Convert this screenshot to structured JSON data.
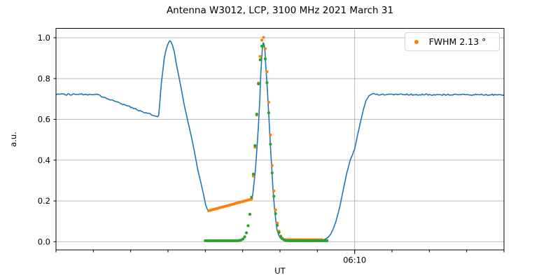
{
  "chart_data": {
    "type": "line",
    "title": "Antenna W3012, LCP, 3100 MHz 2021 March 31",
    "xlabel": "UT",
    "ylabel": "a.u.",
    "x_axis": {
      "unit": "minutes since 00:00 UT",
      "range": [
        330,
        390
      ],
      "minor_tick_step": 5,
      "major_ticks": [
        {
          "t": 370,
          "label": "06:10"
        }
      ],
      "vertical_gridlines": [
        370
      ]
    },
    "y_axis": {
      "range": [
        -0.04,
        1.046
      ],
      "tick_values": [
        0.0,
        0.2,
        0.4,
        0.6,
        0.8,
        1.0
      ],
      "tick_labels": [
        "0.0",
        "0.2",
        "0.4",
        "0.6",
        "0.8",
        "1.0"
      ],
      "grid": true
    },
    "legend": {
      "label": "FWHM 2.13 °",
      "marker_color": "#ff7f0e",
      "position": "upper-right"
    },
    "series": [
      {
        "id": "raw-signal",
        "type": "line",
        "color": "#1f77b4",
        "line_width": 1.6,
        "noise_amp": 0.007,
        "points": [
          [
            330.0,
            0.722
          ],
          [
            335.4,
            0.722
          ],
          [
            336.6,
            0.707
          ],
          [
            338.0,
            0.688
          ],
          [
            339.4,
            0.668
          ],
          [
            340.8,
            0.648
          ],
          [
            342.2,
            0.63
          ],
          [
            343.1,
            0.618
          ],
          [
            343.6,
            0.613
          ],
          [
            343.75,
            0.62
          ],
          [
            343.9,
            0.68
          ],
          [
            344.0,
            0.73
          ],
          [
            344.15,
            0.79
          ],
          [
            344.35,
            0.85
          ],
          [
            344.5,
            0.9
          ],
          [
            344.7,
            0.935
          ],
          [
            344.9,
            0.96
          ],
          [
            345.1,
            0.978
          ],
          [
            345.25,
            0.985
          ],
          [
            345.4,
            0.98
          ],
          [
            345.6,
            0.963
          ],
          [
            345.85,
            0.93
          ],
          [
            346.1,
            0.875
          ],
          [
            346.4,
            0.82
          ],
          [
            346.8,
            0.745
          ],
          [
            347.15,
            0.675
          ],
          [
            347.6,
            0.6
          ],
          [
            348.1,
            0.52
          ],
          [
            348.55,
            0.44
          ],
          [
            349.0,
            0.35
          ],
          [
            349.4,
            0.29
          ],
          [
            349.8,
            0.225
          ],
          [
            350.05,
            0.18
          ],
          [
            350.25,
            0.16
          ],
          [
            350.45,
            0.152
          ],
          [
            351.1,
            0.158
          ],
          [
            352.0,
            0.167
          ],
          [
            353.0,
            0.176
          ],
          [
            353.9,
            0.185
          ],
          [
            354.85,
            0.194
          ],
          [
            355.5,
            0.2
          ],
          [
            356.0,
            0.206
          ],
          [
            356.15,
            0.21
          ],
          [
            356.35,
            0.23
          ],
          [
            356.5,
            0.28
          ],
          [
            356.7,
            0.35
          ],
          [
            356.9,
            0.45
          ],
          [
            357.1,
            0.56
          ],
          [
            357.3,
            0.7
          ],
          [
            357.4,
            0.8
          ],
          [
            357.55,
            0.9
          ],
          [
            357.65,
            0.955
          ],
          [
            357.75,
            0.975
          ],
          [
            357.85,
            0.97
          ],
          [
            358.0,
            0.93
          ],
          [
            358.1,
            0.86
          ],
          [
            358.3,
            0.75
          ],
          [
            358.5,
            0.62
          ],
          [
            358.7,
            0.48
          ],
          [
            358.9,
            0.36
          ],
          [
            359.05,
            0.26
          ],
          [
            359.25,
            0.17
          ],
          [
            359.45,
            0.1
          ],
          [
            359.6,
            0.06
          ],
          [
            359.8,
            0.035
          ],
          [
            360.0,
            0.02
          ],
          [
            360.3,
            0.012
          ],
          [
            365.8,
            0.008
          ],
          [
            366.0,
            0.012
          ],
          [
            366.4,
            0.02
          ],
          [
            366.75,
            0.035
          ],
          [
            367.1,
            0.06
          ],
          [
            367.5,
            0.1
          ],
          [
            368.0,
            0.17
          ],
          [
            368.45,
            0.25
          ],
          [
            368.9,
            0.33
          ],
          [
            369.4,
            0.4
          ],
          [
            370.0,
            0.455
          ],
          [
            370.4,
            0.525
          ],
          [
            370.8,
            0.59
          ],
          [
            371.15,
            0.645
          ],
          [
            371.5,
            0.69
          ],
          [
            371.9,
            0.715
          ],
          [
            372.2,
            0.722
          ],
          [
            372.5,
            0.727
          ],
          [
            372.85,
            0.722
          ],
          [
            390.0,
            0.72
          ]
        ]
      },
      {
        "id": "scan-data-points",
        "type": "scatter",
        "color": "#ff7f0e",
        "marker_radius": 2.1,
        "model": {
          "t_start": 350.45,
          "t_end": 365.77,
          "dt": 0.2297,
          "gauss": {
            "center": 357.73,
            "sigma": 0.8625,
            "amp": 1.0
          },
          "offset": 0.005,
          "baseline_left": {
            "t0": 350.45,
            "v0": 0.152,
            "slope": 0.00992
          },
          "baseline_right": 0.01
        }
      },
      {
        "id": "gaussian-fit-points",
        "type": "scatter",
        "color": "#2ca02c",
        "marker_radius": 2.1,
        "model": {
          "t_start": 349.99,
          "t_end": 366.37,
          "dt": 0.2297,
          "gauss": {
            "center": 357.69,
            "sigma": 0.8625,
            "amp": 0.963
          },
          "baseline": 0.005
        }
      }
    ],
    "style": {
      "grid_color": "#b0b0b0",
      "spine_color": "#000000",
      "background": "#ffffff",
      "tick_font_px": 11.5
    }
  }
}
